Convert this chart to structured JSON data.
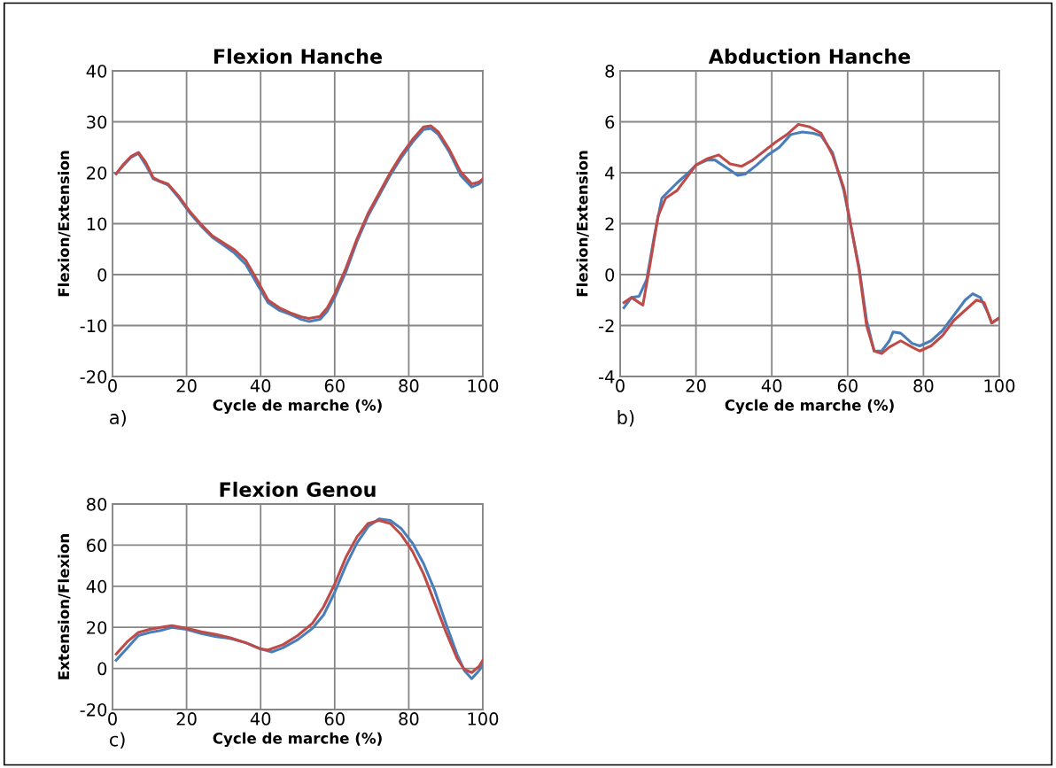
{
  "chart_data": [
    {
      "type": "line",
      "title": "Flexion Hanche",
      "xlabel": "Cycle de marche (%)",
      "ylabel": "Flexion/Extension",
      "annotations": [
        "a)"
      ],
      "xlim": [
        0,
        100
      ],
      "xticks": [
        0,
        20,
        40,
        60,
        80,
        100
      ],
      "ylim": [
        -20,
        40
      ],
      "yticks": [
        -20,
        -10,
        0,
        10,
        20,
        30,
        40
      ],
      "grid": true,
      "series": [
        {
          "color": "#4a7ebb",
          "x": [
            1,
            3,
            5,
            7,
            9,
            11,
            13,
            15,
            18,
            21,
            24,
            27,
            30,
            33,
            36,
            39,
            42,
            45,
            48,
            51,
            53,
            56,
            58,
            60,
            63,
            66,
            69,
            72,
            75,
            78,
            81,
            84,
            86,
            88,
            91,
            94,
            97,
            99,
            100
          ],
          "values": [
            19.8,
            21.5,
            23,
            23.8,
            21.5,
            18.8,
            18.2,
            17.6,
            15,
            12,
            9.5,
            7.3,
            5.8,
            4.2,
            2,
            -1.8,
            -5.5,
            -7,
            -7.8,
            -8.8,
            -9.2,
            -8.8,
            -7.2,
            -4.5,
            0.5,
            6.5,
            11.5,
            15.5,
            19.5,
            23,
            26,
            28.5,
            28.7,
            27.5,
            24,
            19.5,
            17.2,
            17.8,
            18.5
          ]
        },
        {
          "color": "#be4b48",
          "x": [
            1,
            3,
            5,
            7,
            9,
            11,
            13,
            15,
            18,
            21,
            24,
            27,
            30,
            33,
            36,
            39,
            42,
            45,
            48,
            51,
            53,
            56,
            58,
            60,
            63,
            66,
            69,
            72,
            75,
            78,
            81,
            84,
            86,
            88,
            91,
            94,
            97,
            99,
            100
          ],
          "values": [
            19.8,
            21.7,
            23.2,
            24,
            22,
            19,
            18.3,
            17.8,
            15.3,
            12.3,
            9.8,
            7.6,
            6.2,
            4.8,
            2.8,
            -1,
            -5,
            -6.5,
            -7.5,
            -8.3,
            -8.6,
            -8.2,
            -6.5,
            -3.8,
            1.2,
            7,
            12,
            16,
            20,
            23.5,
            26.5,
            29,
            29.2,
            28,
            24.5,
            20.2,
            17.8,
            18.2,
            18.8
          ]
        }
      ]
    },
    {
      "type": "line",
      "title": "Abduction Hanche",
      "xlabel": "Cycle de marche (%)",
      "ylabel": "Flexion/Extension",
      "annotations": [
        "b)"
      ],
      "xlim": [
        0,
        100
      ],
      "xticks": [
        0,
        20,
        40,
        60,
        80,
        100
      ],
      "ylim": [
        -4,
        8
      ],
      "yticks": [
        -4,
        -2,
        0,
        2,
        4,
        6,
        8
      ],
      "grid": true,
      "series": [
        {
          "color": "#4a7ebb",
          "x": [
            1,
            3,
            5,
            7,
            9,
            11,
            13,
            15,
            18,
            20,
            23,
            25,
            28,
            31,
            33,
            36,
            39,
            42,
            45,
            48,
            51,
            53,
            56,
            59,
            61,
            63,
            65,
            67,
            69,
            71,
            72,
            74,
            77,
            79,
            82,
            85,
            88,
            91,
            93,
            95,
            97,
            98,
            100
          ],
          "values": [
            -1.3,
            -0.9,
            -0.85,
            -0.2,
            1.5,
            3.0,
            3.3,
            3.6,
            4.0,
            4.3,
            4.5,
            4.5,
            4.2,
            3.9,
            3.95,
            4.3,
            4.7,
            5.0,
            5.5,
            5.6,
            5.55,
            5.45,
            4.8,
            3.3,
            1.8,
            0.3,
            -1.8,
            -3.0,
            -3.0,
            -2.6,
            -2.25,
            -2.3,
            -2.7,
            -2.8,
            -2.6,
            -2.2,
            -1.6,
            -1.0,
            -0.75,
            -0.9,
            -1.5,
            -1.9,
            -1.7
          ]
        },
        {
          "color": "#be4b48",
          "x": [
            1,
            3,
            5,
            6,
            8,
            10,
            12,
            15,
            18,
            20,
            23,
            26,
            29,
            32,
            35,
            38,
            41,
            44,
            47,
            50,
            53,
            56,
            59,
            61,
            63,
            65,
            67,
            69,
            71,
            74,
            77,
            79,
            82,
            85,
            88,
            91,
            94,
            96,
            98,
            100
          ],
          "values": [
            -1.1,
            -0.9,
            -1.1,
            -1.2,
            0.5,
            2.3,
            3.0,
            3.3,
            3.9,
            4.3,
            4.55,
            4.7,
            4.35,
            4.25,
            4.5,
            4.85,
            5.2,
            5.5,
            5.9,
            5.8,
            5.55,
            4.7,
            3.4,
            1.8,
            0.2,
            -2.0,
            -3.0,
            -3.1,
            -2.85,
            -2.6,
            -2.85,
            -3.0,
            -2.8,
            -2.4,
            -1.8,
            -1.4,
            -1.0,
            -1.1,
            -1.9,
            -1.7
          ]
        }
      ]
    },
    {
      "type": "line",
      "title": "Flexion Genou",
      "xlabel": "Cycle de marche (%)",
      "ylabel": "Extension/Flexion",
      "annotations": [
        "c)"
      ],
      "xlim": [
        0,
        100
      ],
      "xticks": [
        0,
        20,
        40,
        60,
        80,
        100
      ],
      "ylim": [
        -20,
        80
      ],
      "yticks": [
        -20,
        0,
        20,
        40,
        60,
        80
      ],
      "grid": true,
      "series": [
        {
          "color": "#4a7ebb",
          "x": [
            1,
            4,
            7,
            10,
            13,
            16,
            20,
            24,
            28,
            32,
            36,
            40,
            43,
            46,
            50,
            54,
            57,
            60,
            63,
            66,
            69,
            72,
            75,
            78,
            81,
            84,
            87,
            90,
            93,
            95,
            97,
            99,
            100
          ],
          "values": [
            4,
            10,
            16,
            17.5,
            18.5,
            20,
            19,
            17,
            15.5,
            14.5,
            12.5,
            9.5,
            8,
            10,
            14,
            19.5,
            26,
            37,
            50,
            61,
            69,
            72.8,
            72,
            68,
            61,
            51,
            38,
            22,
            7,
            -1,
            -5,
            -1,
            2
          ]
        },
        {
          "color": "#be4b48",
          "x": [
            1,
            4,
            7,
            10,
            13,
            16,
            20,
            24,
            28,
            32,
            36,
            40,
            42,
            46,
            50,
            54,
            57,
            60,
            63,
            66,
            69,
            72,
            75,
            78,
            81,
            84,
            87,
            90,
            93,
            95,
            97,
            99,
            100
          ],
          "values": [
            7,
            13,
            17.5,
            19,
            20,
            20.8,
            19.5,
            17.8,
            16.5,
            14.8,
            12.5,
            9.5,
            9,
            11.5,
            16,
            22,
            30,
            41,
            54,
            64,
            70.5,
            72,
            70.5,
            65,
            57,
            46,
            32,
            18,
            5,
            -0.5,
            -2,
            1,
            4
          ]
        }
      ]
    }
  ]
}
